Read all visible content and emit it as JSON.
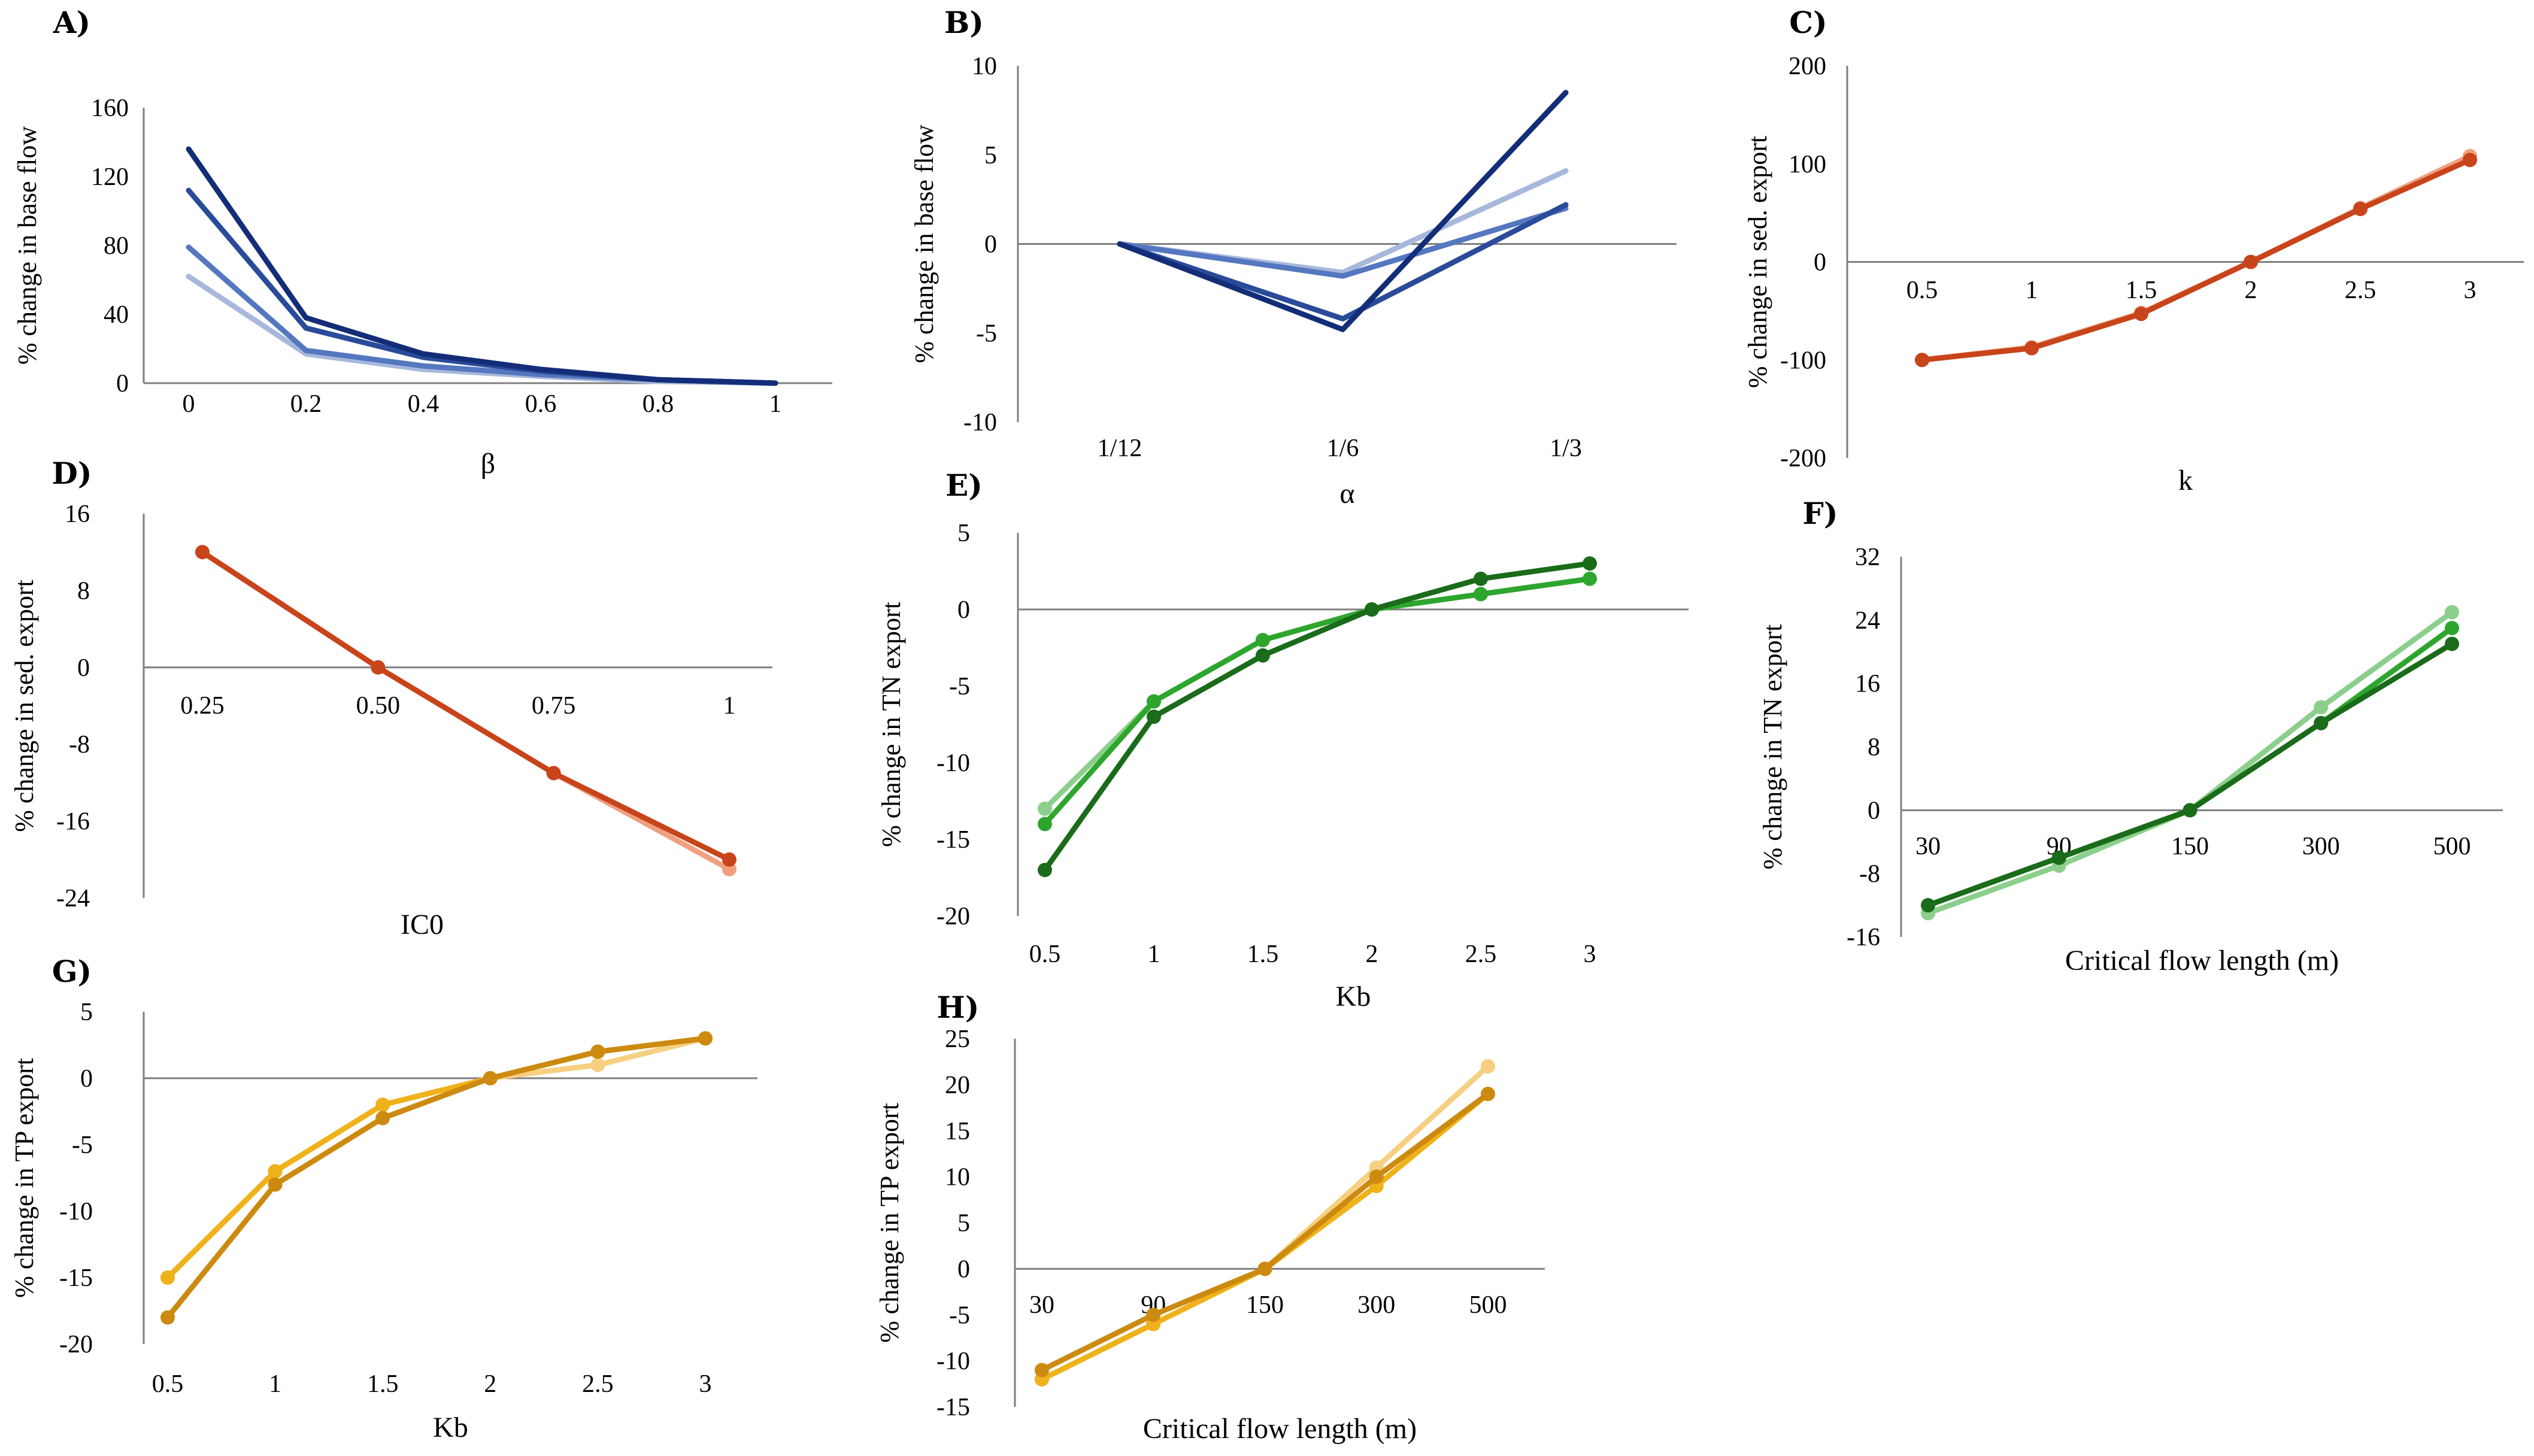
{
  "chart_data": [
    {
      "id": "A",
      "label": "A)",
      "type": "line",
      "xlabel": "β",
      "ylabel": "% change in base flow",
      "categories": [
        "0",
        "0.2",
        "0.4",
        "0.6",
        "0.8",
        "1"
      ],
      "ylim": [
        0,
        160
      ],
      "yticks": [
        "0",
        "40",
        "80",
        "120",
        "160"
      ],
      "markers": false,
      "series": [
        {
          "name": "s1",
          "color": "#a8b8dc",
          "values": [
            62,
            17,
            8,
            4,
            1,
            0
          ]
        },
        {
          "name": "s2",
          "color": "#5577c0",
          "values": [
            79,
            19,
            10,
            5,
            2,
            0
          ]
        },
        {
          "name": "s3",
          "color": "#2a4b9a",
          "values": [
            112,
            32,
            15,
            7,
            2,
            0
          ]
        },
        {
          "name": "s4",
          "color": "#132d78",
          "values": [
            136,
            38,
            17,
            8,
            2,
            0
          ]
        }
      ]
    },
    {
      "id": "B",
      "label": "B)",
      "type": "line",
      "xlabel": "α",
      "ylabel": "% change in base flow",
      "categories": [
        "1/12",
        "1/6",
        "1/3"
      ],
      "ylim": [
        -10,
        10
      ],
      "yticks": [
        "-10",
        "-5",
        "0",
        "5",
        "10"
      ],
      "markers": false,
      "series": [
        {
          "name": "s1",
          "color": "#a8b8dc",
          "values": [
            0,
            -1.6,
            4.1
          ]
        },
        {
          "name": "s2",
          "color": "#5577c0",
          "values": [
            0,
            -1.8,
            2.0
          ]
        },
        {
          "name": "s3",
          "color": "#2a4b9a",
          "values": [
            0,
            -4.2,
            2.2
          ]
        },
        {
          "name": "s4",
          "color": "#132d78",
          "values": [
            0,
            -4.8,
            8.5
          ]
        }
      ]
    },
    {
      "id": "C",
      "label": "C)",
      "type": "line",
      "xlabel": "k",
      "ylabel": "% change in sed. export",
      "categories": [
        "0.5",
        "1",
        "1.5",
        "2",
        "2.5",
        "3"
      ],
      "ylim": [
        -200,
        200
      ],
      "yticks": [
        "-200",
        "-100",
        "0",
        "100",
        "200"
      ],
      "markers": true,
      "series": [
        {
          "name": "s1",
          "color": "#f0a080",
          "values": [
            -100,
            -87,
            -52,
            0,
            55,
            108
          ]
        },
        {
          "name": "s2",
          "color": "#c8441a",
          "values": [
            -100,
            -88,
            -53,
            0,
            54,
            104
          ]
        }
      ]
    },
    {
      "id": "D",
      "label": "D)",
      "type": "line",
      "xlabel": "IC0",
      "ylabel": "% change in sed. export",
      "categories": [
        "0.25",
        "0.50",
        "0.75",
        "1"
      ],
      "ylim": [
        -24,
        16
      ],
      "yticks": [
        "-24",
        "-16",
        "-8",
        "0",
        "8",
        "16"
      ],
      "markers": true,
      "series": [
        {
          "name": "s1",
          "color": "#f0a080",
          "values": [
            12,
            0,
            -11,
            -21
          ]
        },
        {
          "name": "s2",
          "color": "#c8441a",
          "values": [
            12,
            0,
            -11,
            -20
          ]
        }
      ]
    },
    {
      "id": "E",
      "label": "E)",
      "type": "line",
      "xlabel": "Kb",
      "ylabel": "% change in TN export",
      "categories": [
        "0.5",
        "1",
        "1.5",
        "2",
        "2.5",
        "3"
      ],
      "ylim": [
        -20,
        5
      ],
      "yticks": [
        "-20",
        "-15",
        "-10",
        "-5",
        "0",
        "5"
      ],
      "markers": true,
      "series": [
        {
          "name": "s1",
          "color": "#8ccf8c",
          "values": [
            -13,
            -6,
            -2,
            0,
            1,
            2
          ]
        },
        {
          "name": "s2",
          "color": "#2ea62e",
          "values": [
            -14,
            -6,
            -2,
            0,
            1,
            2
          ]
        },
        {
          "name": "s3",
          "color": "#1a6b1a",
          "values": [
            -17,
            -7,
            -3,
            0,
            2,
            3
          ]
        }
      ]
    },
    {
      "id": "F",
      "label": "F)",
      "type": "line",
      "xlabel": "Critical flow length (m)",
      "ylabel": "% change in TN export",
      "categories": [
        "30",
        "90",
        "150",
        "300",
        "500"
      ],
      "ylim": [
        -16,
        32
      ],
      "yticks": [
        "-16",
        "-8",
        "0",
        "8",
        "16",
        "24",
        "32"
      ],
      "markers": true,
      "series": [
        {
          "name": "s1",
          "color": "#8ccf8c",
          "values": [
            -13,
            -7,
            0,
            13,
            25
          ]
        },
        {
          "name": "s2",
          "color": "#2ea62e",
          "values": [
            -12,
            -6,
            0,
            11,
            23
          ]
        },
        {
          "name": "s3",
          "color": "#1a6b1a",
          "values": [
            -12,
            -6,
            0,
            11,
            21
          ]
        }
      ]
    },
    {
      "id": "G",
      "label": "G)",
      "type": "line",
      "xlabel": "Kb",
      "ylabel": "% change in TP export",
      "categories": [
        "0.5",
        "1",
        "1.5",
        "2",
        "2.5",
        "3"
      ],
      "ylim": [
        -20,
        5
      ],
      "yticks": [
        "-20",
        "-15",
        "-10",
        "-5",
        "0",
        "5"
      ],
      "markers": true,
      "series": [
        {
          "name": "s1",
          "color": "#f6d080",
          "values": [
            -15,
            -7,
            -2,
            0,
            1,
            3
          ]
        },
        {
          "name": "s2",
          "color": "#f0b21a",
          "values": [
            -15,
            -7,
            -2,
            0,
            2,
            3
          ]
        },
        {
          "name": "s3",
          "color": "#cc8a10",
          "values": [
            -18,
            -8,
            -3,
            0,
            2,
            3
          ]
        }
      ]
    },
    {
      "id": "H",
      "label": "H)",
      "type": "line",
      "xlabel": "Critical flow length (m)",
      "ylabel": "% change in TP export",
      "categories": [
        "30",
        "90",
        "150",
        "300",
        "500"
      ],
      "ylim": [
        -15,
        25
      ],
      "yticks": [
        "-15",
        "-10",
        "-5",
        "0",
        "5",
        "10",
        "15",
        "20",
        "25"
      ],
      "markers": true,
      "series": [
        {
          "name": "s1",
          "color": "#f6d080",
          "values": [
            -12,
            -6,
            0,
            11,
            22
          ]
        },
        {
          "name": "s2",
          "color": "#f0b21a",
          "values": [
            -12,
            -6,
            0,
            9,
            19
          ]
        },
        {
          "name": "s3",
          "color": "#cc8a10",
          "values": [
            -11,
            -5,
            0,
            10,
            19
          ]
        }
      ]
    }
  ]
}
